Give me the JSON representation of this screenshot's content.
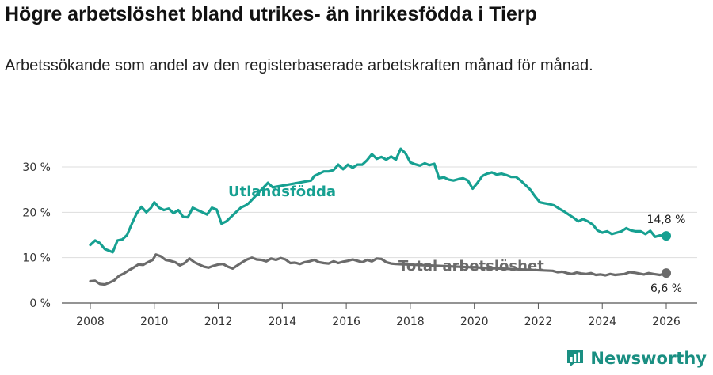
{
  "title": "Högre arbetslöshet bland utrikes- än inrikesfödda i Tierp",
  "subtitle": "Arbetssökande som andel av den registerbaserade arbetskraften månad för månad.",
  "brand": {
    "name": "Newsworthy",
    "icon": "newsworthy-logo-icon"
  },
  "colors": {
    "foreign_born": "#16a091",
    "total": "#6b6b6b",
    "grid": "#dddddd"
  },
  "chart_data": {
    "type": "line",
    "title": "Högre arbetslöshet bland utrikes- än inrikesfödda i Tierp",
    "xlabel": "",
    "ylabel": "",
    "xlim": [
      2007.3,
      2026.6
    ],
    "ylim": [
      0,
      35
    ],
    "grid": true,
    "x_ticks": [
      2008,
      2010,
      2012,
      2014,
      2016,
      2018,
      2020,
      2022,
      2024,
      2026
    ],
    "x_tick_labels": [
      "2008",
      "2010",
      "2012",
      "2014",
      "2016",
      "2018",
      "2020",
      "2022",
      "2024",
      "2026"
    ],
    "y_ticks": [
      0,
      10,
      20,
      30
    ],
    "y_tick_labels": [
      "0 %",
      "10 %",
      "20 %",
      "30 %"
    ],
    "series": [
      {
        "name": "Utlandsfödda",
        "label": "Utlandsfödda",
        "color": "#16a091",
        "end_label": "14,8 %",
        "points": [
          [
            2008.0,
            12.8
          ],
          [
            2008.15,
            13.8
          ],
          [
            2008.3,
            13.2
          ],
          [
            2008.45,
            11.9
          ],
          [
            2008.6,
            11.5
          ],
          [
            2008.7,
            11.2
          ],
          [
            2008.85,
            13.8
          ],
          [
            2009.0,
            14.0
          ],
          [
            2009.15,
            15.0
          ],
          [
            2009.3,
            17.5
          ],
          [
            2009.45,
            19.8
          ],
          [
            2009.6,
            21.2
          ],
          [
            2009.75,
            20.0
          ],
          [
            2009.9,
            21.0
          ],
          [
            2010.0,
            22.2
          ],
          [
            2010.15,
            21.0
          ],
          [
            2010.3,
            20.5
          ],
          [
            2010.45,
            20.8
          ],
          [
            2010.6,
            19.8
          ],
          [
            2010.75,
            20.5
          ],
          [
            2010.9,
            19.0
          ],
          [
            2011.05,
            18.9
          ],
          [
            2011.2,
            21.0
          ],
          [
            2011.35,
            20.5
          ],
          [
            2011.5,
            20.0
          ],
          [
            2011.65,
            19.5
          ],
          [
            2011.8,
            21.0
          ],
          [
            2011.95,
            20.6
          ],
          [
            2012.1,
            17.5
          ],
          [
            2012.25,
            18.0
          ],
          [
            2012.4,
            19.0
          ],
          [
            2012.55,
            20.0
          ],
          [
            2012.7,
            21.0
          ],
          [
            2012.85,
            21.5
          ],
          [
            2012.95,
            22.0
          ],
          [
            2013.55,
            26.5
          ],
          [
            2013.7,
            25.5
          ],
          [
            2014.9,
            27.0
          ],
          [
            2015.0,
            28.0
          ],
          [
            2015.15,
            28.5
          ],
          [
            2015.3,
            29.0
          ],
          [
            2015.45,
            29.0
          ],
          [
            2015.6,
            29.3
          ],
          [
            2015.75,
            30.5
          ],
          [
            2015.9,
            29.5
          ],
          [
            2016.05,
            30.5
          ],
          [
            2016.2,
            29.8
          ],
          [
            2016.35,
            30.5
          ],
          [
            2016.5,
            30.5
          ],
          [
            2016.65,
            31.5
          ],
          [
            2016.8,
            32.8
          ],
          [
            2016.95,
            31.8
          ],
          [
            2017.1,
            32.2
          ],
          [
            2017.25,
            31.6
          ],
          [
            2017.4,
            32.3
          ],
          [
            2017.55,
            31.6
          ],
          [
            2017.7,
            34.0
          ],
          [
            2017.85,
            33.0
          ],
          [
            2018.0,
            31.0
          ],
          [
            2018.15,
            30.6
          ],
          [
            2018.3,
            30.3
          ],
          [
            2018.45,
            30.8
          ],
          [
            2018.6,
            30.4
          ],
          [
            2018.75,
            30.7
          ],
          [
            2018.9,
            27.5
          ],
          [
            2019.05,
            27.7
          ],
          [
            2019.2,
            27.2
          ],
          [
            2019.35,
            27.0
          ],
          [
            2019.5,
            27.3
          ],
          [
            2019.65,
            27.5
          ],
          [
            2019.8,
            27.0
          ],
          [
            2019.95,
            25.2
          ],
          [
            2020.1,
            26.5
          ],
          [
            2020.25,
            28.0
          ],
          [
            2020.4,
            28.5
          ],
          [
            2020.55,
            28.8
          ],
          [
            2020.7,
            28.3
          ],
          [
            2020.85,
            28.5
          ],
          [
            2021.0,
            28.2
          ],
          [
            2021.15,
            27.8
          ],
          [
            2021.3,
            27.8
          ],
          [
            2021.45,
            27.0
          ],
          [
            2021.6,
            26.0
          ],
          [
            2021.75,
            25.0
          ],
          [
            2021.9,
            23.5
          ],
          [
            2022.05,
            22.2
          ],
          [
            2022.2,
            22.0
          ],
          [
            2022.35,
            21.8
          ],
          [
            2022.5,
            21.5
          ],
          [
            2022.65,
            20.8
          ],
          [
            2022.8,
            20.2
          ],
          [
            2022.95,
            19.5
          ],
          [
            2023.1,
            18.8
          ],
          [
            2023.25,
            18.0
          ],
          [
            2023.4,
            18.5
          ],
          [
            2023.55,
            18.0
          ],
          [
            2023.7,
            17.3
          ],
          [
            2023.85,
            16.0
          ],
          [
            2024.0,
            15.5
          ],
          [
            2024.15,
            15.8
          ],
          [
            2024.3,
            15.2
          ],
          [
            2024.45,
            15.5
          ],
          [
            2024.6,
            15.8
          ],
          [
            2024.75,
            16.5
          ],
          [
            2024.9,
            16.0
          ],
          [
            2025.05,
            15.8
          ],
          [
            2025.2,
            15.8
          ],
          [
            2025.35,
            15.2
          ],
          [
            2025.5,
            15.9
          ],
          [
            2025.65,
            14.6
          ],
          [
            2025.8,
            14.9
          ],
          [
            2026.0,
            14.8
          ]
        ]
      },
      {
        "name": "Total arbetslöshet",
        "label": "Total arbetslöshet",
        "color": "#6b6b6b",
        "end_label": "6,6 %",
        "points": [
          [
            2008.0,
            4.8
          ],
          [
            2008.15,
            4.9
          ],
          [
            2008.3,
            4.2
          ],
          [
            2008.45,
            4.1
          ],
          [
            2008.6,
            4.5
          ],
          [
            2008.75,
            5.0
          ],
          [
            2008.9,
            6.0
          ],
          [
            2009.05,
            6.5
          ],
          [
            2009.2,
            7.2
          ],
          [
            2009.35,
            7.8
          ],
          [
            2009.5,
            8.5
          ],
          [
            2009.65,
            8.4
          ],
          [
            2009.8,
            9.0
          ],
          [
            2009.95,
            9.5
          ],
          [
            2010.05,
            10.7
          ],
          [
            2010.2,
            10.3
          ],
          [
            2010.35,
            9.5
          ],
          [
            2010.5,
            9.3
          ],
          [
            2010.65,
            9.0
          ],
          [
            2010.8,
            8.3
          ],
          [
            2010.95,
            8.8
          ],
          [
            2011.1,
            9.8
          ],
          [
            2011.25,
            9.0
          ],
          [
            2011.4,
            8.5
          ],
          [
            2011.55,
            8.0
          ],
          [
            2011.7,
            7.8
          ],
          [
            2011.85,
            8.2
          ],
          [
            2012.0,
            8.5
          ],
          [
            2012.15,
            8.6
          ],
          [
            2012.3,
            8.0
          ],
          [
            2012.45,
            7.6
          ],
          [
            2012.6,
            8.3
          ],
          [
            2012.75,
            9.0
          ],
          [
            2012.9,
            9.6
          ],
          [
            2013.05,
            10.0
          ],
          [
            2013.2,
            9.6
          ],
          [
            2013.35,
            9.5
          ],
          [
            2013.5,
            9.2
          ],
          [
            2013.65,
            9.8
          ],
          [
            2013.8,
            9.5
          ],
          [
            2013.95,
            9.9
          ],
          [
            2014.1,
            9.6
          ],
          [
            2014.25,
            8.8
          ],
          [
            2014.4,
            8.9
          ],
          [
            2014.55,
            8.6
          ],
          [
            2014.7,
            9.0
          ],
          [
            2014.85,
            9.2
          ],
          [
            2015.0,
            9.5
          ],
          [
            2015.15,
            9.0
          ],
          [
            2015.3,
            8.8
          ],
          [
            2015.45,
            8.7
          ],
          [
            2015.6,
            9.2
          ],
          [
            2015.75,
            8.8
          ],
          [
            2015.9,
            9.1
          ],
          [
            2016.05,
            9.3
          ],
          [
            2016.2,
            9.6
          ],
          [
            2016.35,
            9.3
          ],
          [
            2016.5,
            9.0
          ],
          [
            2016.65,
            9.5
          ],
          [
            2016.8,
            9.2
          ],
          [
            2016.95,
            9.8
          ],
          [
            2017.1,
            9.7
          ],
          [
            2017.25,
            9.0
          ],
          [
            2017.4,
            8.7
          ],
          [
            2017.55,
            8.6
          ],
          [
            2022.45,
            7.1
          ],
          [
            2022.6,
            6.8
          ],
          [
            2022.75,
            6.9
          ],
          [
            2022.9,
            6.6
          ],
          [
            2023.05,
            6.4
          ],
          [
            2023.2,
            6.7
          ],
          [
            2023.35,
            6.5
          ],
          [
            2023.5,
            6.4
          ],
          [
            2023.65,
            6.6
          ],
          [
            2023.8,
            6.2
          ],
          [
            2023.95,
            6.3
          ],
          [
            2024.1,
            6.1
          ],
          [
            2024.25,
            6.4
          ],
          [
            2024.4,
            6.2
          ],
          [
            2024.55,
            6.3
          ],
          [
            2024.7,
            6.4
          ],
          [
            2024.85,
            6.8
          ],
          [
            2025.0,
            6.7
          ],
          [
            2025.15,
            6.5
          ],
          [
            2025.3,
            6.3
          ],
          [
            2025.45,
            6.6
          ],
          [
            2025.6,
            6.4
          ],
          [
            2025.8,
            6.2
          ],
          [
            2026.0,
            6.6
          ]
        ]
      }
    ],
    "annotations": [
      {
        "text": "Utlandsfödda",
        "series": "Utlandsfödda"
      },
      {
        "text": "Total arbetslöshet",
        "series": "Total arbetslöshet"
      },
      {
        "text": "14,8 %",
        "series": "Utlandsfödda"
      },
      {
        "text": "6,6 %",
        "series": "Total arbetslöshet"
      }
    ]
  }
}
